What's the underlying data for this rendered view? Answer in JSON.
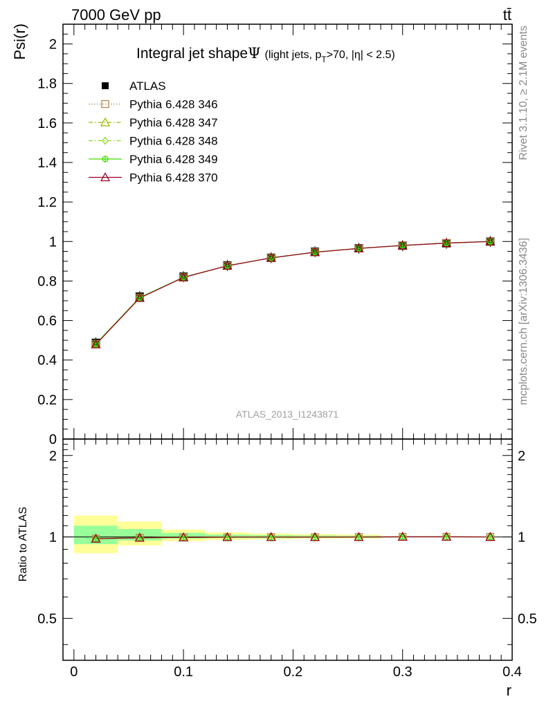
{
  "header": {
    "energy_label": "7000 GeV pp",
    "process_label": "tt̄"
  },
  "side_labels": {
    "rivet": "Rivet 3.1.10, ≥ 2.1M events",
    "mcplots": "mcplots.cern.ch [arXiv:1306.3436]"
  },
  "watermark": "ATLAS_2013_I1243871",
  "chart_data": [
    {
      "type": "line",
      "panel": "main",
      "title_main": "Integral jet shape",
      "title_psi": "Ψ",
      "title_sub_pre": "(light jets, p",
      "title_sub_sub": "T",
      "title_sub_post": ">70, |η| < 2.5)",
      "ylabel": "Psi(r)",
      "xlim": [
        -0.01,
        0.4
      ],
      "ylim": [
        0,
        2.1
      ],
      "yticks": [
        0,
        0.2,
        0.4,
        0.6,
        0.8,
        1,
        1.2,
        1.4,
        1.6,
        1.8,
        2
      ],
      "ytick_labels": [
        "0",
        "0.2",
        "0.4",
        "0.6",
        "0.8",
        "1",
        "1.2",
        "1.4",
        "1.6",
        "1.8",
        "2"
      ],
      "x": [
        0.02,
        0.06,
        0.1,
        0.14,
        0.18,
        0.22,
        0.26,
        0.3,
        0.34,
        0.38
      ],
      "legend_position": "top-left",
      "series": [
        {
          "name": "ATLAS",
          "marker": "square-filled",
          "color": "#000000",
          "values": [
            0.487,
            0.721,
            0.822,
            0.879,
            0.918,
            0.948,
            0.966,
            0.979,
            0.991,
            1.0
          ]
        },
        {
          "name": "Pythia 6.428 346",
          "marker": "square-open",
          "color": "#b8864b",
          "linestyle": "dotted",
          "values": [
            0.482,
            0.716,
            0.819,
            0.877,
            0.917,
            0.946,
            0.965,
            0.98,
            0.992,
            1.0
          ]
        },
        {
          "name": "Pythia 6.428 347",
          "marker": "triangle-open",
          "color": "#99bb00",
          "linestyle": "dashdot",
          "values": [
            0.481,
            0.715,
            0.818,
            0.877,
            0.917,
            0.946,
            0.965,
            0.98,
            0.992,
            1.0
          ]
        },
        {
          "name": "Pythia 6.428 348",
          "marker": "diamond-open",
          "color": "#88dd22",
          "linestyle": "dashdot",
          "values": [
            0.482,
            0.716,
            0.819,
            0.877,
            0.917,
            0.946,
            0.965,
            0.98,
            0.992,
            1.0
          ]
        },
        {
          "name": "Pythia 6.428 349",
          "marker": "cross-circle",
          "color": "#44dd00",
          "linestyle": "solid",
          "values": [
            0.482,
            0.716,
            0.819,
            0.877,
            0.917,
            0.946,
            0.965,
            0.98,
            0.992,
            1.0
          ]
        },
        {
          "name": "Pythia 6.428 370",
          "marker": "triangle-open",
          "color": "#990022",
          "linestyle": "solid",
          "values": [
            0.479,
            0.714,
            0.818,
            0.877,
            0.917,
            0.946,
            0.965,
            0.98,
            0.992,
            1.0
          ]
        }
      ]
    },
    {
      "type": "line",
      "panel": "ratio",
      "ylabel": "Ratio to ATLAS",
      "xlabel": "r",
      "xlim": [
        -0.01,
        0.4
      ],
      "ylim": [
        0.35,
        2.3
      ],
      "yticks": [
        0.5,
        1,
        2
      ],
      "ytick_labels": [
        "0.5",
        "1",
        "2"
      ],
      "xticks": [
        0,
        0.1,
        0.2,
        0.3,
        0.4
      ],
      "xtick_labels": [
        "0",
        "0.1",
        "0.2",
        "0.3",
        "0.4"
      ],
      "band_bins": [
        {
          "lo": 0.0,
          "hi": 0.04,
          "green": [
            0.94,
            1.1
          ],
          "yellow": [
            0.87,
            1.2
          ]
        },
        {
          "lo": 0.04,
          "hi": 0.08,
          "green": [
            0.97,
            1.07
          ],
          "yellow": [
            0.93,
            1.14
          ]
        },
        {
          "lo": 0.08,
          "hi": 0.12,
          "green": [
            0.985,
            1.035
          ],
          "yellow": [
            0.965,
            1.065
          ]
        },
        {
          "lo": 0.12,
          "hi": 0.16,
          "green": [
            0.99,
            1.02
          ],
          "yellow": [
            0.975,
            1.04
          ]
        },
        {
          "lo": 0.16,
          "hi": 0.2,
          "green": [
            0.99,
            1.015
          ],
          "yellow": [
            0.98,
            1.03
          ]
        },
        {
          "lo": 0.2,
          "hi": 0.24,
          "green": [
            0.992,
            1.012
          ],
          "yellow": [
            0.985,
            1.025
          ]
        },
        {
          "lo": 0.24,
          "hi": 0.28,
          "green": [
            0.993,
            1.01
          ],
          "yellow": [
            0.987,
            1.02
          ]
        }
      ],
      "ratio_values": [
        0.985,
        0.993,
        0.996,
        0.998,
        0.999,
        0.998,
        0.999,
        1.001,
        1.001,
        1.0
      ]
    }
  ]
}
